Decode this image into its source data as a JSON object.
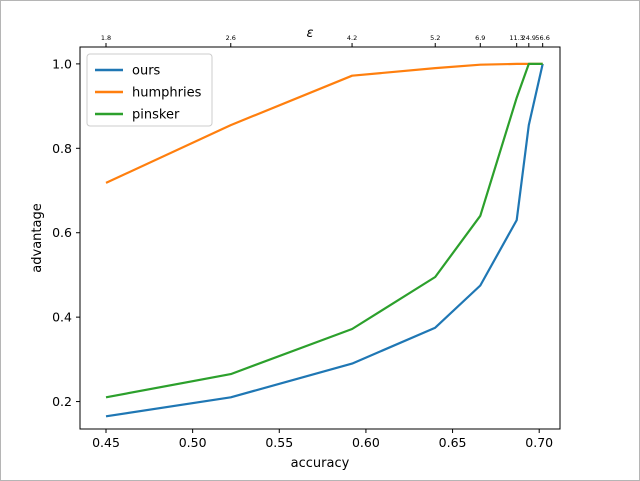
{
  "chart_data": {
    "type": "line",
    "title": "",
    "xlabel": "accuracy",
    "ylabel": "advantage",
    "top_axis_label": "ε",
    "xlim": [
      0.435,
      0.712
    ],
    "ylim": [
      0.135,
      1.04
    ],
    "xticks": [
      0.45,
      0.5,
      0.55,
      0.6,
      0.65,
      0.7
    ],
    "xtick_labels": [
      "0.45",
      "0.50",
      "0.55",
      "0.60",
      "0.65",
      "0.70"
    ],
    "yticks": [
      0.2,
      0.4,
      0.6,
      0.8,
      1.0
    ],
    "ytick_labels": [
      "0.2",
      "0.4",
      "0.6",
      "0.8",
      "1.0"
    ],
    "top_ticks": [
      {
        "x": 0.45,
        "label": "1.8"
      },
      {
        "x": 0.522,
        "label": "2.6"
      },
      {
        "x": 0.592,
        "label": "4.2"
      },
      {
        "x": 0.64,
        "label": "5.2"
      },
      {
        "x": 0.666,
        "label": "6.9"
      },
      {
        "x": 0.687,
        "label": "11.3"
      },
      {
        "x": 0.694,
        "label": "24.9"
      },
      {
        "x": 0.702,
        "label": "56.6"
      }
    ],
    "grid": false,
    "legend_position": "top-left",
    "series": [
      {
        "name": "ours",
        "color": "#1f77b4",
        "x": [
          0.45,
          0.522,
          0.592,
          0.64,
          0.666,
          0.687,
          0.694,
          0.702
        ],
        "y": [
          0.165,
          0.21,
          0.29,
          0.375,
          0.475,
          0.63,
          0.855,
          1.0
        ]
      },
      {
        "name": "humphries",
        "color": "#ff7f0e",
        "x": [
          0.45,
          0.522,
          0.592,
          0.64,
          0.666,
          0.687,
          0.694,
          0.702
        ],
        "y": [
          0.718,
          0.855,
          0.972,
          0.99,
          0.998,
          1.0,
          1.0,
          1.0
        ]
      },
      {
        "name": "pinsker",
        "color": "#2ca02c",
        "x": [
          0.45,
          0.522,
          0.592,
          0.64,
          0.666,
          0.687,
          0.694,
          0.702
        ],
        "y": [
          0.21,
          0.265,
          0.372,
          0.495,
          0.64,
          0.92,
          1.0,
          1.0
        ]
      }
    ]
  }
}
